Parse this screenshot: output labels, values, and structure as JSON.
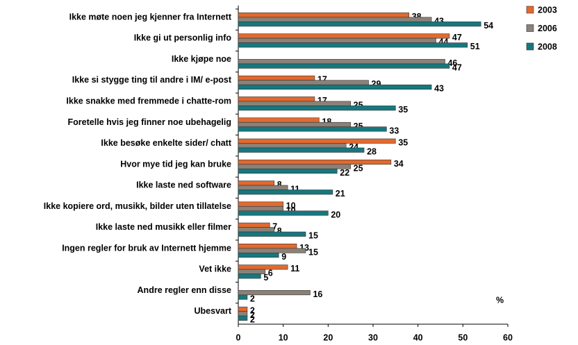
{
  "chart_data": {
    "type": "hbar",
    "categories": [
      "Ikke møte noen jeg kjenner fra Internett",
      "Ikke gi ut personlig info",
      "Ikke kjøpe noe",
      "Ikke si stygge ting til andre i IM/ e-post",
      "Ikke snakke med fremmede i chatte-rom",
      "Foretelle hvis jeg finner noe ubehagelig",
      "Ikke besøke enkelte sider/ chatt",
      "Hvor mye tid jeg kan bruke",
      "Ikke laste ned software",
      "Ikke kopiere ord, musikk, bilder uten tillatelse",
      "Ikke laste ned musikk eller filmer",
      "Ingen regler for bruk av Internett hjemme",
      "Vet ikke",
      "Andre regler enn disse",
      "Ubesvart"
    ],
    "series": [
      {
        "name": "2003",
        "color": "#e2692f",
        "values": [
          38,
          47,
          null,
          17,
          17,
          18,
          35,
          34,
          8,
          10,
          7,
          13,
          11,
          null,
          2
        ]
      },
      {
        "name": "2006",
        "color": "#8b8178",
        "values": [
          43,
          44,
          46,
          29,
          25,
          25,
          24,
          25,
          11,
          10,
          8,
          15,
          6,
          16,
          2
        ]
      },
      {
        "name": "2008",
        "color": "#16787e",
        "values": [
          54,
          51,
          47,
          43,
          35,
          33,
          28,
          22,
          21,
          20,
          15,
          9,
          5,
          2,
          2
        ]
      }
    ],
    "xlim": [
      0,
      60
    ],
    "xticks": [
      0,
      10,
      20,
      30,
      40,
      50,
      60
    ],
    "annotation": "%",
    "legend": "top-right"
  }
}
